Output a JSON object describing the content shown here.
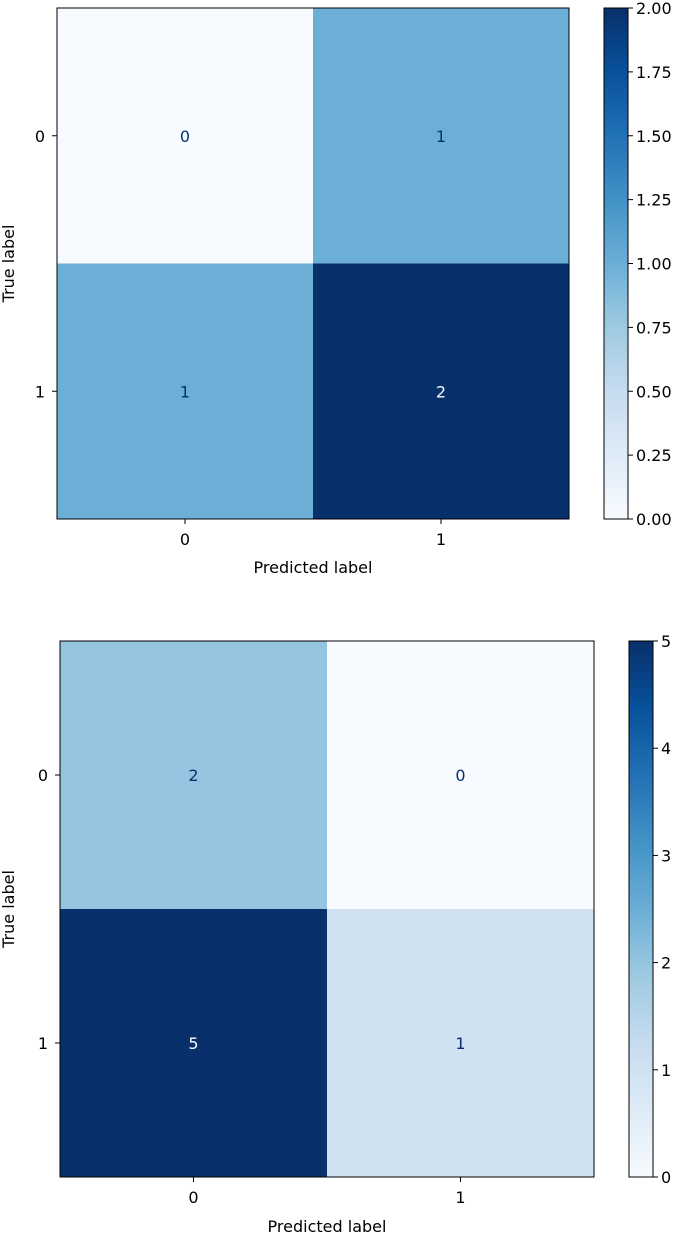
{
  "chart_data": [
    {
      "type": "heatmap",
      "title": "",
      "xlabel": "Predicted label",
      "ylabel": "True label",
      "x_categories": [
        "0",
        "1"
      ],
      "y_categories": [
        "0",
        "1"
      ],
      "values": [
        [
          0,
          1
        ],
        [
          1,
          2
        ]
      ],
      "colormap": "Blues",
      "colorbar": {
        "range": [
          0,
          2
        ],
        "ticks": [
          "0.00",
          "0.25",
          "0.50",
          "0.75",
          "1.00",
          "1.25",
          "1.50",
          "1.75",
          "2.00"
        ]
      }
    },
    {
      "type": "heatmap",
      "title": "",
      "xlabel": "Predicted label",
      "ylabel": "True label",
      "x_categories": [
        "0",
        "1"
      ],
      "y_categories": [
        "0",
        "1"
      ],
      "values": [
        [
          2,
          0
        ],
        [
          5,
          1
        ]
      ],
      "colormap": "Blues",
      "colorbar": {
        "range": [
          0,
          5
        ],
        "ticks": [
          "0",
          "1",
          "2",
          "3",
          "4",
          "5"
        ]
      }
    }
  ],
  "colors": {
    "blues_low": "#f7fbff",
    "blues_high": "#08306b",
    "text_light": "#f7fbff",
    "text_dark": "#08306b",
    "axis": "#000000"
  }
}
